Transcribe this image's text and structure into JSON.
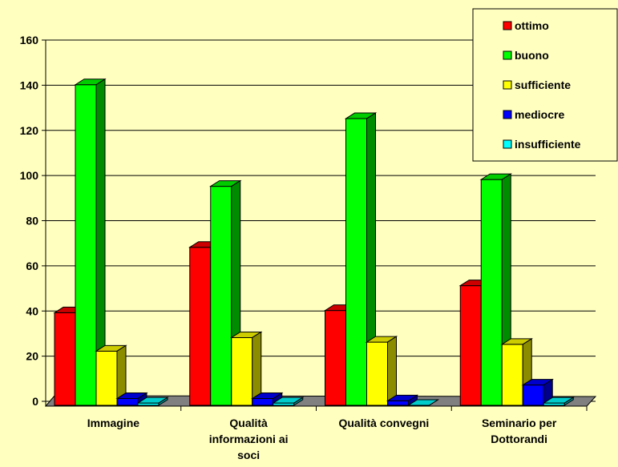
{
  "chart_data": {
    "type": "bar",
    "categories": [
      [
        "Immagine"
      ],
      [
        "Qualità",
        "informazioni ai",
        "soci"
      ],
      [
        "Qualità convegni"
      ],
      [
        "Seminario per",
        "Dottorandi"
      ]
    ],
    "series": [
      {
        "name": "ottimo",
        "values": [
          41,
          70,
          42,
          53
        ],
        "color": "#ff0000"
      },
      {
        "name": "buono",
        "values": [
          142,
          97,
          127,
          100
        ],
        "color": "#00ff00"
      },
      {
        "name": "sufficiente",
        "values": [
          24,
          30,
          28,
          27
        ],
        "color": "#ffff00"
      },
      {
        "name": "mediocre",
        "values": [
          3,
          3,
          2,
          9
        ],
        "color": "#0000ff"
      },
      {
        "name": "insufficiente",
        "values": [
          1,
          1,
          0,
          1
        ],
        "color": "#00ffff"
      }
    ],
    "ylim": [
      0,
      160
    ],
    "yticks": [
      0,
      20,
      40,
      60,
      80,
      100,
      120,
      140,
      160
    ],
    "grid": true,
    "legend_position": "top-right",
    "colors": {
      "background": "#ffffc0",
      "floor": "#808080"
    }
  }
}
